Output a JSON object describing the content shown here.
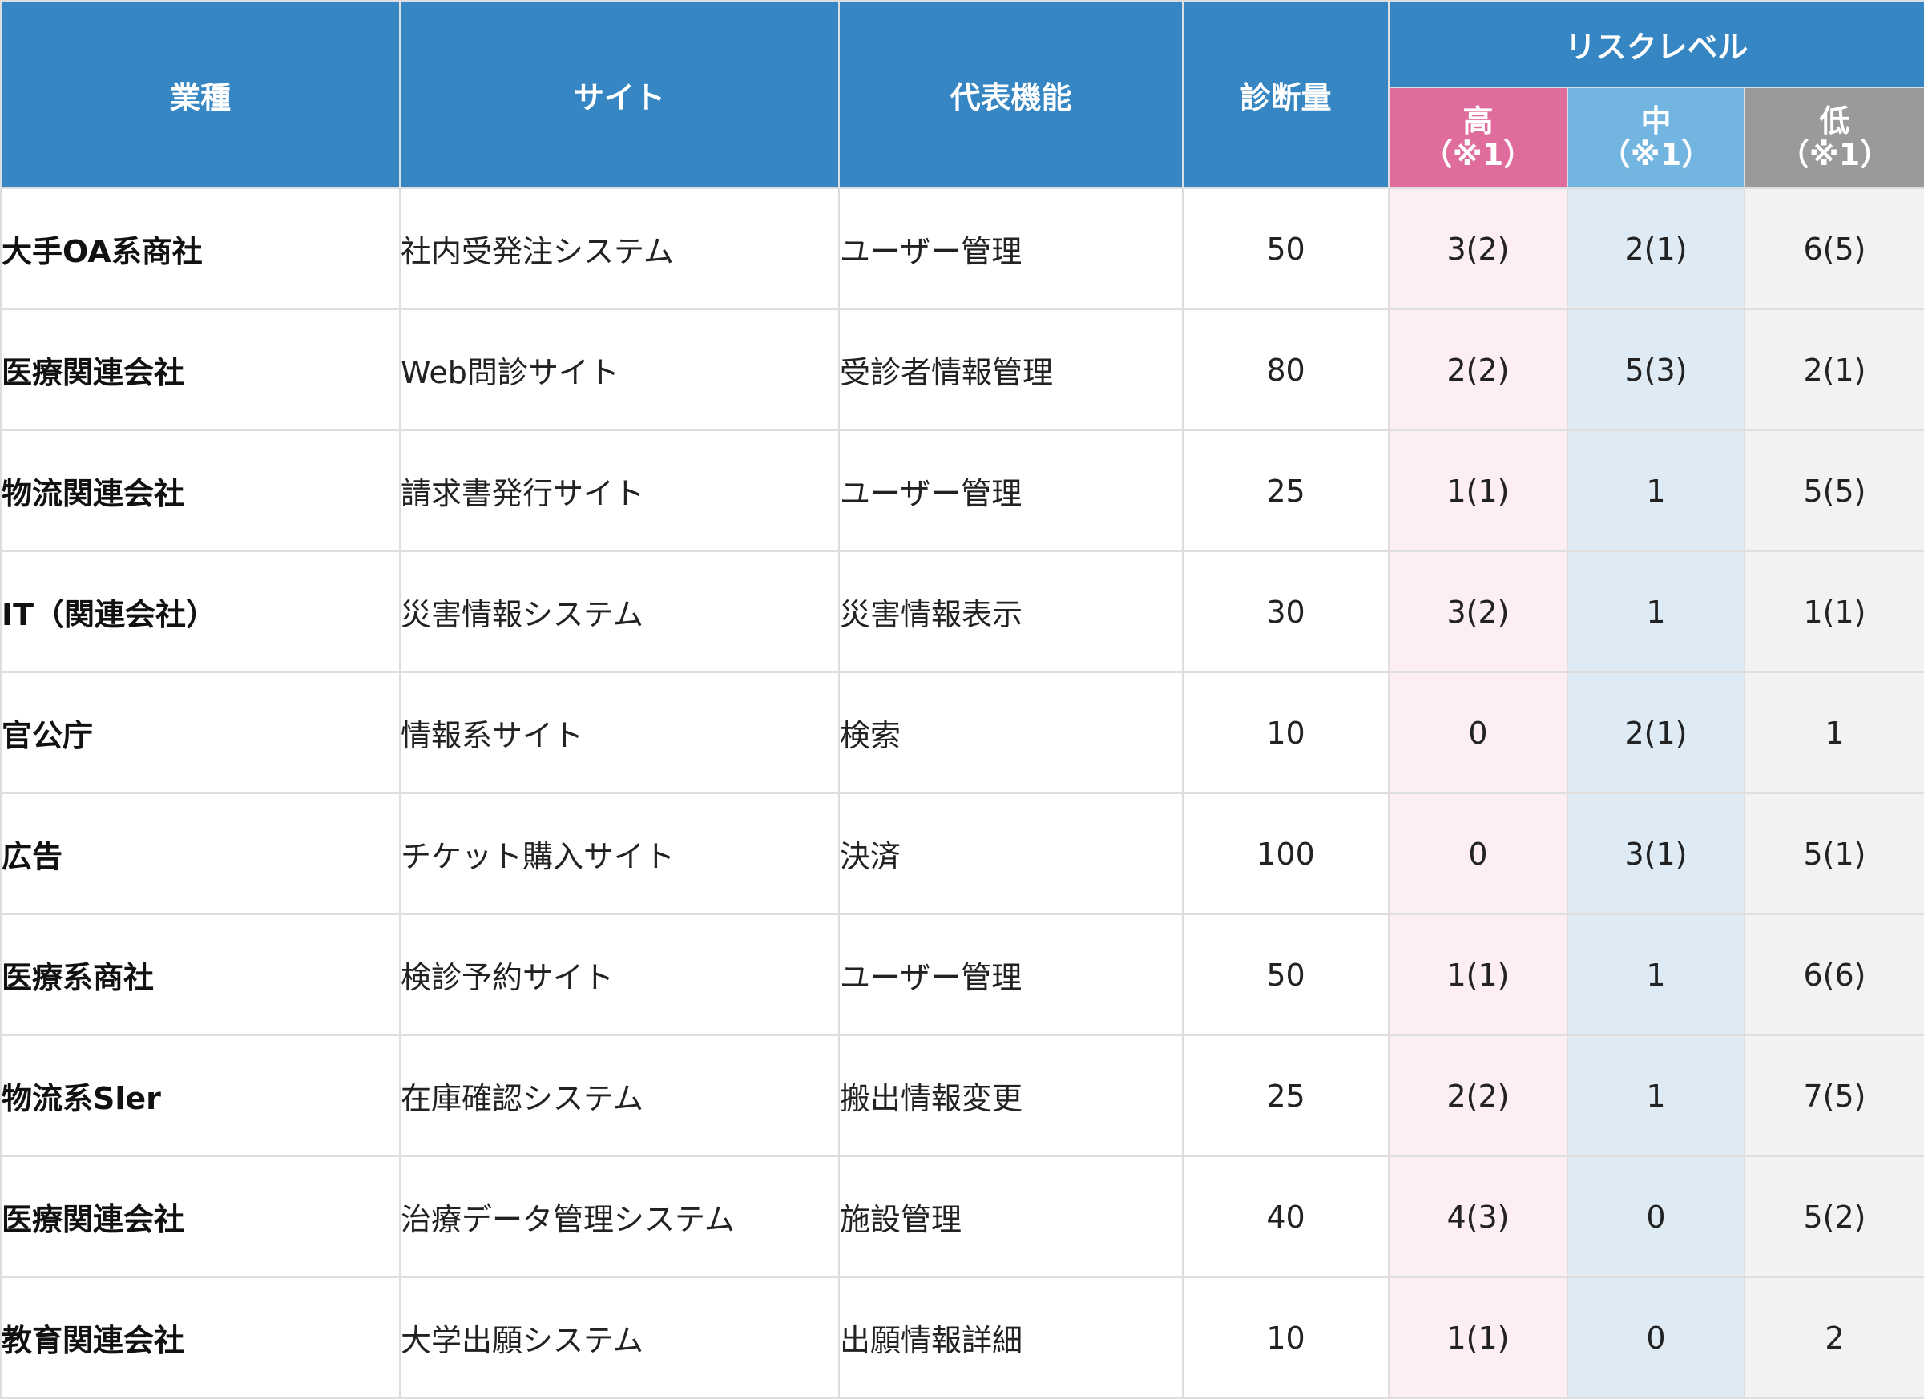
{
  "header": {
    "industry": "業種",
    "site": "サイト",
    "function": "代表機能",
    "amount": "診断量",
    "risk_level": "リスクレベル",
    "levels": [
      {
        "label": "高",
        "note": "（※1）",
        "color": "#e06c9d"
      },
      {
        "label": "中",
        "note": "（※1）",
        "color": "#71b5e0"
      },
      {
        "label": "低",
        "note": "（※1）",
        "color": "#9a9a9a"
      }
    ]
  },
  "colors": {
    "header_bg": "#3586c2",
    "high_cell_bg": "#fdeef3",
    "mid_cell_bg": "#deebf4",
    "low_cell_bg": "#f0f2f4"
  },
  "rows": [
    {
      "industry": "大手OA系商社",
      "site": "社内受発注システム",
      "function": "ユーザー管理",
      "amount": "50",
      "high": "3(2)",
      "mid": "2(1)",
      "low": "6(5)"
    },
    {
      "industry": "医療関連会社",
      "site": "Web問診サイト",
      "function": "受診者情報管理",
      "amount": "80",
      "high": "2(2)",
      "mid": "5(3)",
      "low": "2(1)"
    },
    {
      "industry": "物流関連会社",
      "site": "請求書発行サイト",
      "function": "ユーザー管理",
      "amount": "25",
      "high": "1(1)",
      "mid": "1",
      "low": "5(5)"
    },
    {
      "industry": "IT（関連会社）",
      "site": "災害情報システム",
      "function": "災害情報表示",
      "amount": "30",
      "high": "3(2)",
      "mid": "1",
      "low": "1(1)"
    },
    {
      "industry": "官公庁",
      "site": "情報系サイト",
      "function": "検索",
      "amount": "10",
      "high": "0",
      "mid": "2(1)",
      "low": "1"
    },
    {
      "industry": "広告",
      "site": "チケット購入サイト",
      "function": "決済",
      "amount": "100",
      "high": "0",
      "mid": "3(1)",
      "low": "5(1)"
    },
    {
      "industry": "医療系商社",
      "site": "検診予約サイト",
      "function": "ユーザー管理",
      "amount": "50",
      "high": "1(1)",
      "mid": "1",
      "low": "6(6)"
    },
    {
      "industry": "物流系Sler",
      "site": "在庫確認システム",
      "function": "搬出情報変更",
      "amount": "25",
      "high": "2(2)",
      "mid": "1",
      "low": "7(5)"
    },
    {
      "industry": "医療関連会社",
      "site": "治療データ管理システム",
      "function": "施設管理",
      "amount": "40",
      "high": "4(3)",
      "mid": "0",
      "low": "5(2)"
    },
    {
      "industry": "教育関連会社",
      "site": "大学出願システム",
      "function": "出願情報詳細",
      "amount": "10",
      "high": "1(1)",
      "mid": "0",
      "low": "2"
    }
  ]
}
